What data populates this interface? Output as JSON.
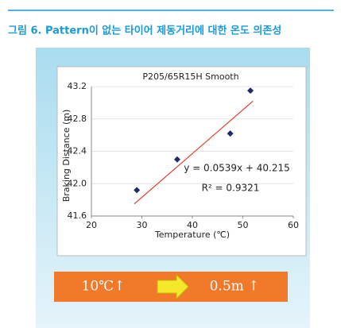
{
  "caption": "그림 6. Pattern이 없는 타이어 제동거리에 대한 온도 의존성",
  "chart_data": {
    "type": "scatter",
    "title": "P205/65R15H Smooth",
    "x_label": "Temperature (℃)",
    "y_label": "Braking Distance (m)",
    "x": [
      29,
      37,
      47.5,
      51.5
    ],
    "values": [
      41.92,
      42.3,
      42.62,
      43.15
    ],
    "color": "#1f2a6b",
    "trendline": {
      "x": [
        28.5,
        52
      ],
      "values": [
        41.75,
        43.02
      ],
      "color": "#e03a2a"
    },
    "equation": "y = 0.0539x + 40.215",
    "r_squared": "R² = 0.9321",
    "xlim": [
      20,
      60
    ],
    "xticks": [
      20,
      30,
      40,
      50,
      60
    ],
    "ylim": [
      41.6,
      43.2
    ],
    "yticks": [
      41.6,
      {
        "value": 42,
        "label": "42.0"
      },
      42.4,
      42.8,
      43.2
    ],
    "grid": true
  },
  "banner": {
    "left": "10℃↑",
    "right": "0.5m ↑"
  }
}
